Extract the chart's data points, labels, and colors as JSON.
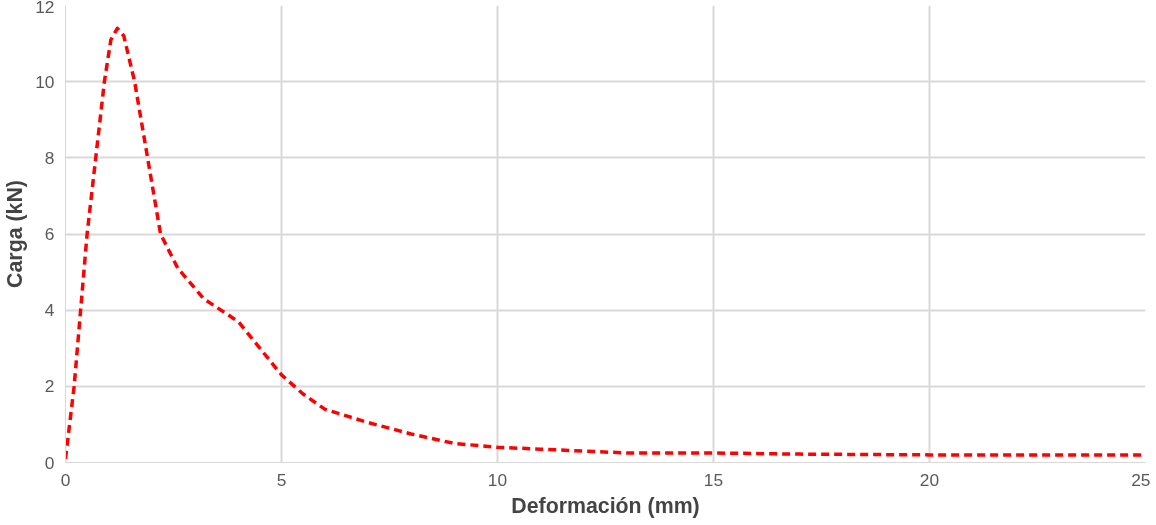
{
  "chart_data": {
    "type": "line",
    "xlabel": "Deformación (mm)",
    "ylabel": "Carga (kN)",
    "xlim": [
      0,
      25
    ],
    "ylim": [
      0,
      12
    ],
    "xticks": [
      0,
      5,
      10,
      15,
      20,
      25
    ],
    "yticks": [
      0,
      2,
      4,
      6,
      8,
      10,
      12
    ],
    "grid": true,
    "line_style": "dashed",
    "marker": "none",
    "series": [
      {
        "color": "#ff0000",
        "x": [
          0,
          0.2,
          0.35,
          0.5,
          0.7,
          0.9,
          1.05,
          1.2,
          1.35,
          1.6,
          1.9,
          2.2,
          2.6,
          3.2,
          4.0,
          4.5,
          5,
          5.5,
          6,
          7,
          8,
          9,
          10,
          11,
          12,
          13,
          15,
          17,
          20,
          25
        ],
        "values": [
          0.1,
          2,
          4,
          6,
          8,
          10,
          11.1,
          11.4,
          11.2,
          10,
          8,
          6,
          5.1,
          4.3,
          3.7,
          3.0,
          2.3,
          1.8,
          1.4,
          1.05,
          0.75,
          0.5,
          0.4,
          0.35,
          0.3,
          0.25,
          0.25,
          0.22,
          0.2,
          0.2
        ]
      }
    ]
  }
}
